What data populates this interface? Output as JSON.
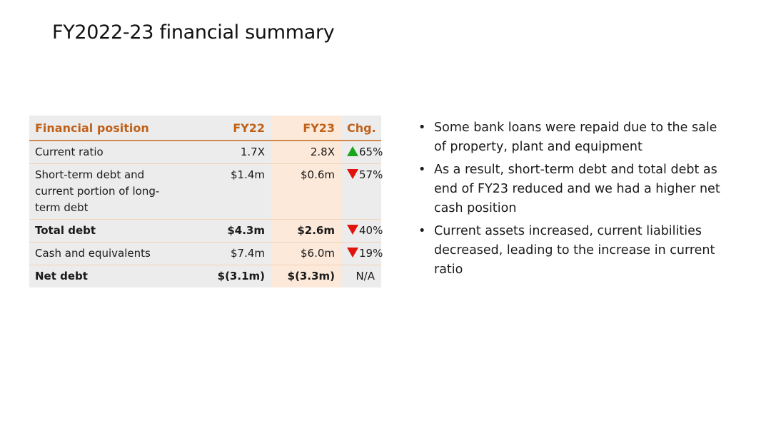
{
  "title": "FY2022-23 financial summary",
  "table": {
    "headers": {
      "label": "Financial position",
      "fy22": "FY22",
      "fy23": "FY23",
      "chg": "Chg."
    },
    "rows": [
      {
        "label": "Current ratio",
        "fy22": "1.7X",
        "fy23": "2.8X",
        "chg": "65%",
        "direction": "up",
        "bold": false
      },
      {
        "label": "Short-term debt and current portion of long-term debt",
        "fy22": "$1.4m",
        "fy23": "$0.6m",
        "chg": "57%",
        "direction": "down",
        "bold": false
      },
      {
        "label": "Total debt",
        "fy22": "$4.3m",
        "fy23": "$2.6m",
        "chg": "40%",
        "direction": "down",
        "bold": true
      },
      {
        "label": "Cash and equivalents",
        "fy22": "$7.4m",
        "fy23": "$6.0m",
        "chg": "19%",
        "direction": "down",
        "bold": false
      },
      {
        "label": "Net debt",
        "fy22": "$(3.1m)",
        "fy23": "$(3.3m)",
        "chg": "N/A",
        "direction": "none",
        "bold": true
      }
    ]
  },
  "bullets": [
    "Some bank loans were repaid due to the sale of property, plant and equipment",
    "As a result, short-term debt and total debt as end of FY23 reduced and we had a higher net cash position",
    "Current assets increased, current liabilities decreased, leading to the increase in current ratio"
  ],
  "colors": {
    "header_text": "#c0611a",
    "fy23_column": "#fce9da",
    "table_bg": "#ececec",
    "up_arrow": "#1aa51f",
    "down_arrow": "#e0140c"
  }
}
